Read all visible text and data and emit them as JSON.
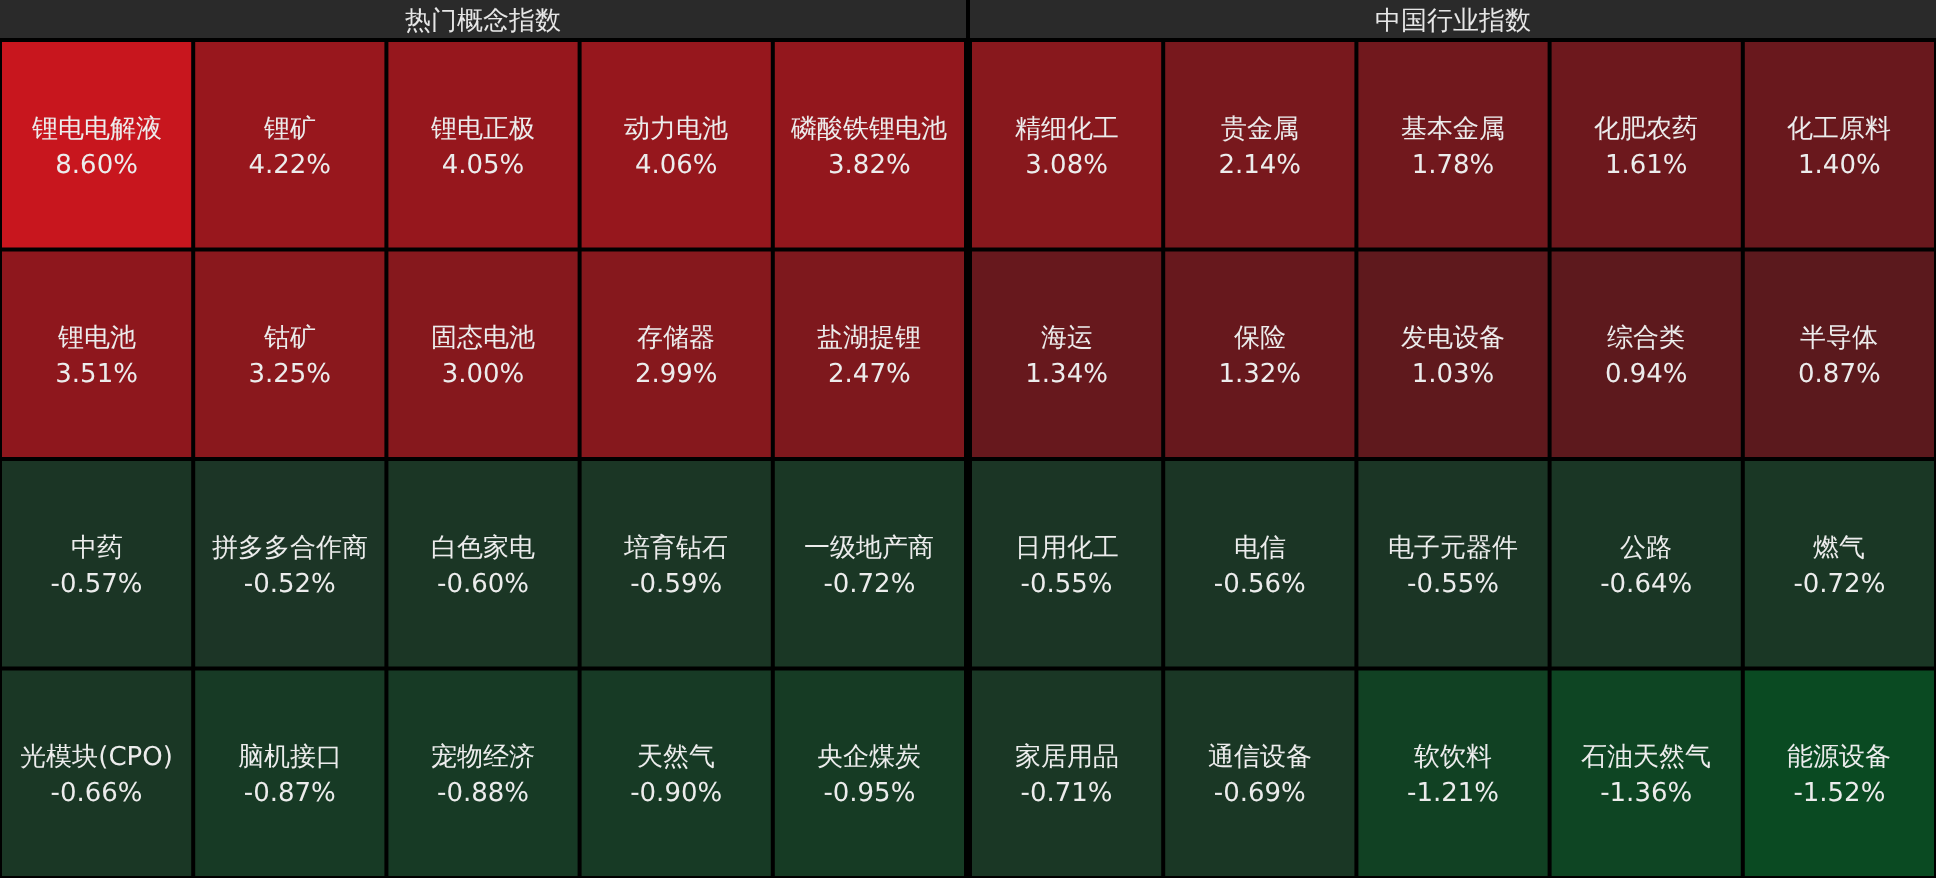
{
  "chart_data": [
    {
      "type": "other",
      "title": "热门概念指数",
      "categories": [
        "锂电电解液",
        "锂矿",
        "锂电正极",
        "动力电池",
        "磷酸铁锂电池",
        "锂电池",
        "钴矿",
        "固态电池",
        "存储器",
        "盐湖提锂",
        "中药",
        "拼多多合作商",
        "白色家电",
        "培育钻石",
        "一级地产商",
        "光模块(CPO)",
        "脑机接口",
        "宠物经济",
        "天然气",
        "央企煤炭"
      ],
      "values": [
        8.6,
        4.22,
        4.05,
        4.06,
        3.82,
        3.51,
        3.25,
        3.0,
        2.99,
        2.47,
        -0.57,
        -0.52,
        -0.6,
        -0.59,
        -0.72,
        -0.66,
        -0.87,
        -0.88,
        -0.9,
        -0.95
      ],
      "value_labels": [
        "8.60%",
        "4.22%",
        "4.05%",
        "4.06%",
        "3.82%",
        "3.51%",
        "3.25%",
        "3.00%",
        "2.99%",
        "2.47%",
        "-0.57%",
        "-0.52%",
        "-0.60%",
        "-0.59%",
        "-0.72%",
        "-0.66%",
        "-0.87%",
        "-0.88%",
        "-0.90%",
        "-0.95%"
      ]
    },
    {
      "type": "other",
      "title": "中国行业指数",
      "categories": [
        "精细化工",
        "贵金属",
        "基本金属",
        "化肥农药",
        "化工原料",
        "海运",
        "保险",
        "发电设备",
        "综合类",
        "半导体",
        "日用化工",
        "电信",
        "电子元器件",
        "公路",
        "燃气",
        "家居用品",
        "通信设备",
        "软饮料",
        "石油天然气",
        "能源设备"
      ],
      "values": [
        3.08,
        2.14,
        1.78,
        1.61,
        1.4,
        1.34,
        1.32,
        1.03,
        0.94,
        0.87,
        -0.55,
        -0.56,
        -0.55,
        -0.64,
        -0.72,
        -0.71,
        -0.69,
        -1.21,
        -1.36,
        -1.52
      ],
      "value_labels": [
        "3.08%",
        "2.14%",
        "1.78%",
        "1.61%",
        "1.40%",
        "1.34%",
        "1.32%",
        "1.03%",
        "0.94%",
        "0.87%",
        "-0.55%",
        "-0.56%",
        "-0.55%",
        "-0.64%",
        "-0.72%",
        "-0.71%",
        "-0.69%",
        "-1.21%",
        "-1.36%",
        "-1.52%"
      ]
    }
  ]
}
